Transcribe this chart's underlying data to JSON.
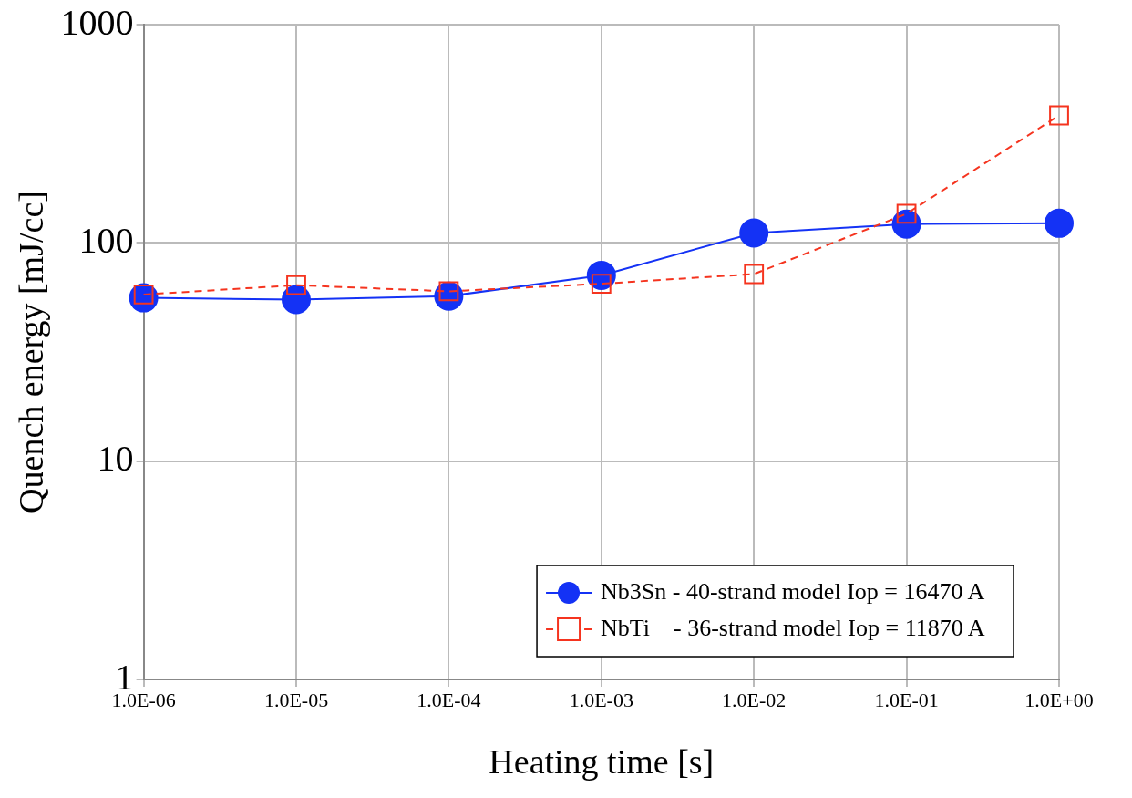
{
  "chart_data": {
    "type": "line",
    "xlabel": "Heating time [s]",
    "ylabel": "Quench energy [mJ/cc]",
    "log": "xy",
    "grid": true,
    "legend": "bottom right",
    "x": [
      1e-06,
      1e-05,
      0.0001,
      0.001,
      0.01,
      0.1,
      1
    ],
    "xlim": [
      1e-06,
      1
    ],
    "ylim": [
      1,
      1000
    ],
    "xticks": [
      {
        "value": 1e-06,
        "label": "1.0E-06"
      },
      {
        "value": 1e-05,
        "label": "1.0E-05"
      },
      {
        "value": 0.0001,
        "label": "1.0E-04"
      },
      {
        "value": 0.001,
        "label": "1.0E-03"
      },
      {
        "value": 0.01,
        "label": "1.0E-02"
      },
      {
        "value": 0.1,
        "label": "1.0E-01"
      },
      {
        "value": 1,
        "label": "1.0E+00"
      }
    ],
    "yticks": [
      1,
      10,
      100,
      1000
    ],
    "series": [
      {
        "name": "Nb3Sn - 40-strand model Iop = 16470 A",
        "color": "#1432f5",
        "marker": "circle",
        "line_style": "solid",
        "values": [
          56,
          55,
          57,
          71,
          111,
          122,
          123
        ]
      },
      {
        "name": "NbTi    - 36-strand model Iop = 11870 A",
        "color": "#f5341f",
        "marker": "square",
        "line_style": "dashed",
        "values": [
          58,
          64,
          60,
          65,
          72,
          136,
          384
        ]
      }
    ]
  }
}
